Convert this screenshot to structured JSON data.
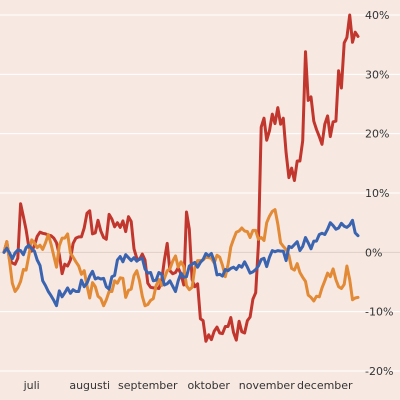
{
  "chart_data": {
    "type": "line",
    "x_label": "",
    "y_label": "",
    "title": "",
    "grid": true,
    "ylim": [
      -20,
      40
    ],
    "y_ticks": [
      {
        "value": 40,
        "label": "40%"
      },
      {
        "value": 30,
        "label": "30%"
      },
      {
        "value": 20,
        "label": "20%"
      },
      {
        "value": 10,
        "label": "10%"
      },
      {
        "value": 0,
        "label": "0%"
      },
      {
        "value": -10,
        "label": "-10%"
      },
      {
        "value": -20,
        "label": "-20%"
      }
    ],
    "x_ticks": [
      {
        "label": "juli",
        "index": 10
      },
      {
        "label": "augusti",
        "index": 31
      },
      {
        "label": "september",
        "index": 52
      },
      {
        "label": "oktober",
        "index": 74
      },
      {
        "label": "november",
        "index": 95
      },
      {
        "label": "december",
        "index": 116
      }
    ],
    "x_count": 129,
    "series": [
      {
        "color": "#c1362d",
        "values": [
          0.0,
          1.8,
          -1.2,
          -1.8,
          -2.0,
          -1.0,
          8.2,
          6.0,
          3.8,
          0.8,
          0.2,
          1.1,
          2.7,
          3.4,
          3.2,
          3.1,
          2.9,
          2.8,
          2.4,
          1.6,
          -0.4,
          -3.6,
          -2.0,
          -2.3,
          -1.3,
          1.5,
          2.4,
          2.6,
          2.6,
          4.1,
          6.6,
          7.0,
          3.1,
          3.3,
          5.4,
          3.6,
          2.5,
          2.2,
          6.4,
          5.6,
          4.3,
          5.0,
          4.2,
          5.3,
          3.5,
          6.0,
          5.2,
          0.6,
          -1.0,
          -1.2,
          -0.3,
          -1.3,
          -5.2,
          -5.9,
          -6.0,
          -6.0,
          -6.1,
          -4.8,
          -1.3,
          1.5,
          -3.1,
          -3.6,
          -3.4,
          -2.6,
          -3.7,
          -5.5,
          6.8,
          3.9,
          -4.6,
          -5.8,
          -5.3,
          -11.2,
          -11.5,
          -15.0,
          -13.9,
          -14.7,
          -13.3,
          -12.6,
          -13.6,
          -13.7,
          -12.5,
          -12.5,
          -11.0,
          -13.5,
          -14.8,
          -11.6,
          -13.4,
          -13.6,
          -11.5,
          -10.9,
          -7.9,
          -6.8,
          1.3,
          21.1,
          22.6,
          18.9,
          20.5,
          23.3,
          21.7,
          24.4,
          21.6,
          22.6,
          16.8,
          12.6,
          14.2,
          12.1,
          15.4,
          15.4,
          18.8,
          33.8,
          25.6,
          26.2,
          22.1,
          20.7,
          19.5,
          18.2,
          21.6,
          23.0,
          19.5,
          22.0,
          22.1,
          30.6,
          27.7,
          35.3,
          36.2,
          40.0,
          35.4,
          37.1,
          36.4
        ]
      },
      {
        "color": "#e28a36",
        "values": [
          0.0,
          1.8,
          -1.4,
          -5.2,
          -6.6,
          -6.0,
          -4.9,
          -2.9,
          -3.0,
          -0.5,
          2.1,
          1.6,
          0.8,
          1.2,
          0.5,
          1.6,
          3.0,
          1.4,
          -0.6,
          -2.5,
          1.1,
          2.4,
          2.4,
          3.1,
          -0.1,
          -0.8,
          -1.6,
          -2.3,
          -3.7,
          -3.1,
          -5.6,
          -7.7,
          -5.1,
          -5.8,
          -7.4,
          -7.8,
          -9.0,
          -8.0,
          -6.6,
          -6.6,
          -4.8,
          -5.2,
          -4.3,
          -4.4,
          -7.6,
          -6.4,
          -6.2,
          -3.9,
          -3.1,
          -4.8,
          -7.4,
          -9.0,
          -8.8,
          -8.1,
          -7.8,
          -5.6,
          -4.6,
          -5.6,
          -4.4,
          -3.1,
          -2.8,
          -1.5,
          -0.6,
          -2.5,
          -1.6,
          -2.4,
          -5.6,
          -6.3,
          -5.9,
          -2.6,
          -1.4,
          -1.4,
          -1.3,
          -0.8,
          -0.9,
          -1.0,
          -1.8,
          -0.5,
          -0.8,
          -2.2,
          -4.1,
          -2.1,
          0.9,
          2.2,
          3.4,
          3.6,
          4.1,
          3.6,
          3.5,
          2.5,
          3.7,
          3.7,
          2.2,
          2.5,
          2.0,
          5.0,
          6.1,
          6.9,
          7.2,
          4.8,
          1.6,
          1.0,
          0.5,
          -0.5,
          -2.7,
          -3.0,
          -1.9,
          -3.4,
          -4.2,
          -4.9,
          -7.2,
          -7.6,
          -8.2,
          -7.4,
          -7.5,
          -6.0,
          -4.8,
          -3.5,
          -4.1,
          -2.8,
          -4.6,
          -5.8,
          -6.1,
          -5.4,
          -2.3,
          -4.6,
          -8.0,
          -7.7,
          -7.6
        ]
      },
      {
        "color": "#3b64b0",
        "values": [
          0.0,
          0.7,
          -0.1,
          -1.1,
          -0.1,
          0.4,
          0.3,
          -0.4,
          0.8,
          1.2,
          0.6,
          0.2,
          -1.3,
          -2.2,
          -4.8,
          -5.6,
          -6.6,
          -7.3,
          -8.1,
          -9.0,
          -6.5,
          -7.5,
          -6.8,
          -6.0,
          -6.9,
          -6.3,
          -6.6,
          -6.6,
          -4.7,
          -5.8,
          -5.2,
          -4.0,
          -3.2,
          -4.5,
          -4.3,
          -4.5,
          -4.4,
          -5.8,
          -6.2,
          -4.1,
          -3.9,
          -1.3,
          -0.7,
          -1.6,
          -0.4,
          -0.9,
          -1.4,
          -0.9,
          -1.5,
          -1.1,
          -1.0,
          -2.8,
          -3.5,
          -3.4,
          -4.8,
          -4.7,
          -3.4,
          -3.7,
          -5.5,
          -5.3,
          -4.8,
          -5.7,
          -6.6,
          -4.8,
          -3.5,
          -4.2,
          -4.1,
          -2.3,
          -2.0,
          -1.7,
          -2.5,
          -1.7,
          -1.2,
          -0.2,
          -0.6,
          -0.2,
          -1.5,
          -3.8,
          -3.7,
          -4.0,
          -2.9,
          -3.1,
          -2.7,
          -2.5,
          -2.9,
          -2.2,
          -2.5,
          -1.6,
          -2.5,
          -3.5,
          -3.3,
          -2.9,
          -2.3,
          -1.2,
          -1.0,
          -2.4,
          -0.8,
          0.3,
          0.1,
          0.3,
          0.2,
          0.2,
          -1.4,
          1.0,
          0.8,
          1.3,
          1.8,
          0.3,
          1.0,
          2.5,
          1.6,
          0.6,
          1.9,
          1.9,
          3.0,
          3.2,
          3.0,
          3.9,
          5.0,
          4.5,
          3.9,
          4.1,
          4.9,
          4.4,
          4.2,
          4.6,
          5.4,
          3.3,
          2.8
        ]
      }
    ]
  }
}
